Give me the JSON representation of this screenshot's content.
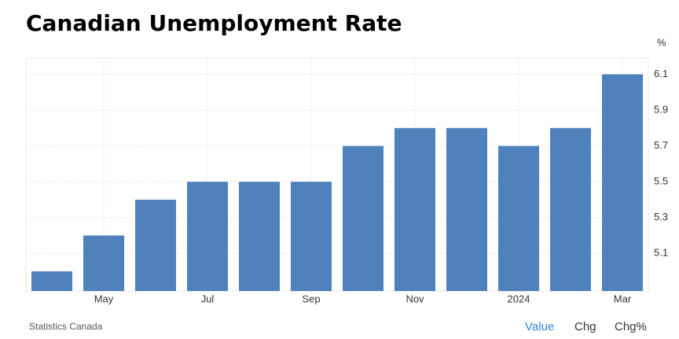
{
  "chart_data": {
    "type": "bar",
    "title": "Canadian Unemployment Rate",
    "unit": "%",
    "categories": [
      null,
      "May",
      null,
      "Jul",
      null,
      "Sep",
      null,
      "Nov",
      null,
      "2024",
      null,
      "Mar"
    ],
    "values": [
      5.0,
      5.2,
      5.4,
      5.5,
      5.5,
      5.5,
      5.7,
      5.8,
      5.8,
      5.7,
      5.8,
      6.1
    ],
    "color": "#4f81bd",
    "ylim": [
      4.89,
      6.19
    ],
    "yticks": [
      5.1,
      5.3,
      5.5,
      5.7,
      5.9,
      6.1
    ],
    "grid": true,
    "source": "Statistics Canada",
    "buttons": [
      "Value",
      "Chg",
      "Chg%"
    ]
  }
}
